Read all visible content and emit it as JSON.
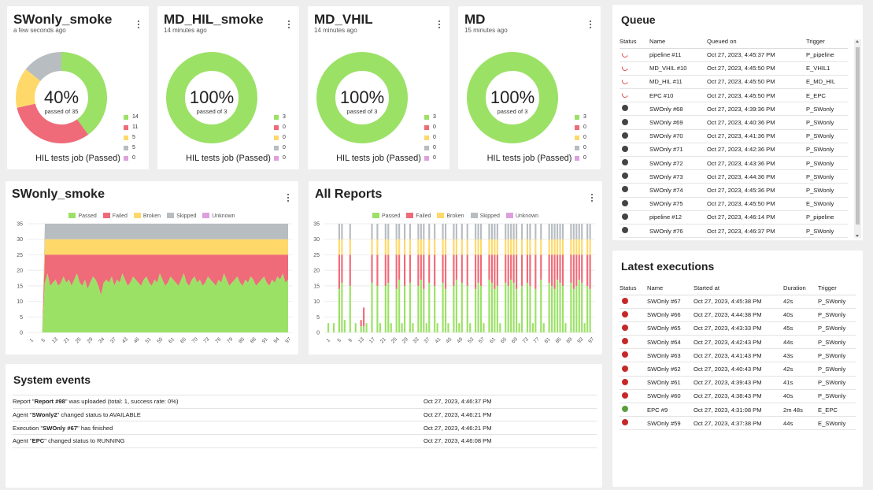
{
  "gauges": [
    {
      "title": "SWonly_smoke",
      "subtitle": "a few seconds ago",
      "percent": "40%",
      "passed_of": "passed of 35",
      "caption": "HIL tests job (Passed)",
      "counts": [
        "14",
        "11",
        "5",
        "5",
        "0"
      ],
      "fractions": [
        0.4,
        0.3143,
        0.1429,
        0.1428,
        0
      ]
    },
    {
      "title": "MD_HIL_smoke",
      "subtitle": "14 minutes ago",
      "percent": "100%",
      "passed_of": "passed of 3",
      "caption": "HIL tests job (Passed)",
      "counts": [
        "3",
        "0",
        "0",
        "0",
        "0"
      ],
      "fractions": [
        1,
        0,
        0,
        0,
        0
      ]
    },
    {
      "title": "MD_VHIL",
      "subtitle": "14 minutes ago",
      "percent": "100%",
      "passed_of": "passed of 3",
      "caption": "HIL tests job (Passed)",
      "counts": [
        "3",
        "0",
        "0",
        "0",
        "0"
      ],
      "fractions": [
        1,
        0,
        0,
        0,
        0
      ]
    },
    {
      "title": "MD",
      "subtitle": "15 minutes ago",
      "percent": "100%",
      "passed_of": "passed of 3",
      "caption": "HIL tests job (Passed)",
      "counts": [
        "3",
        "0",
        "0",
        "0",
        "0"
      ],
      "fractions": [
        1,
        0,
        0,
        0,
        0
      ]
    }
  ],
  "status_colors": {
    "passed": "#9be166",
    "failed": "#ef6b79",
    "broken": "#fed96a",
    "skipped": "#b7bdc1",
    "unknown": "#dda0dd"
  },
  "legend_labels": [
    "Passed",
    "Failed",
    "Broken",
    "Skipped",
    "Unknown"
  ],
  "chart_data": [
    {
      "type": "area",
      "title": "SWonly_smoke",
      "ylim": [
        0,
        35
      ],
      "yticks": [
        "0",
        "5",
        "10",
        "15",
        "20",
        "25",
        "30",
        "35"
      ],
      "xticks": [
        "1",
        "5",
        "13",
        "21",
        "25",
        "29",
        "34",
        "37",
        "43",
        "46",
        "51",
        "55",
        "61",
        "65",
        "70",
        "73",
        "76",
        "79",
        "85",
        "88",
        "91",
        "94",
        "97"
      ],
      "series": [
        {
          "name": "Passed",
          "note": "fluctuates ~14-19 from run 5 onward"
        },
        {
          "name": "Failed",
          "top": 25
        },
        {
          "name": "Broken",
          "top": 30
        },
        {
          "name": "Skipped",
          "top": 35
        }
      ],
      "passed_values": [
        0,
        0,
        0,
        0,
        0,
        16,
        19,
        15,
        16,
        17,
        15,
        16,
        18,
        16,
        17,
        15,
        17,
        19,
        16,
        15,
        17,
        14,
        16,
        18,
        17,
        15,
        12,
        16,
        17,
        16,
        18,
        15,
        17,
        16,
        19,
        17,
        15,
        16,
        18,
        17,
        16,
        15,
        17,
        18,
        16,
        15,
        17,
        16,
        19,
        17,
        15,
        16,
        18,
        17,
        16,
        15,
        17,
        19,
        16,
        15,
        17,
        18,
        16,
        17,
        15,
        16,
        18,
        17,
        16,
        15,
        17,
        16,
        19,
        17,
        15,
        16,
        17,
        18,
        16,
        15,
        17,
        16,
        18,
        17,
        15,
        16,
        17,
        18,
        16,
        15,
        17,
        16,
        18,
        17,
        19,
        16,
        17
      ]
    },
    {
      "type": "bar",
      "title": "All Reports",
      "ylim": [
        0,
        35
      ],
      "yticks": [
        "0",
        "5",
        "10",
        "15",
        "20",
        "25",
        "30",
        "35"
      ],
      "xticks": [
        "1",
        "5",
        "9",
        "13",
        "17",
        "21",
        "25",
        "29",
        "33",
        "37",
        "41",
        "45",
        "49",
        "53",
        "57",
        "61",
        "65",
        "69",
        "73",
        "77",
        "81",
        "85",
        "89",
        "93",
        "97"
      ],
      "stacked_bars": "see bars array",
      "bars": [
        [
          3,
          0,
          0,
          0
        ],
        [
          0,
          0,
          0,
          0
        ],
        [
          3,
          0,
          0,
          0
        ],
        [
          0,
          0,
          0,
          0
        ],
        [
          14,
          11,
          5,
          5
        ],
        [
          16,
          9,
          5,
          5
        ],
        [
          4,
          0,
          0,
          0
        ],
        [
          0,
          0,
          0,
          0
        ],
        [
          15,
          10,
          5,
          5
        ],
        [
          0,
          0,
          0,
          0
        ],
        [
          3,
          0,
          0,
          0
        ],
        [
          0,
          0,
          0,
          0
        ],
        [
          2,
          2,
          0,
          0
        ],
        [
          2,
          6,
          0,
          0
        ],
        [
          3,
          0,
          0,
          0
        ],
        [
          0,
          0,
          0,
          0
        ],
        [
          16,
          9,
          5,
          5
        ],
        [
          0,
          0,
          0,
          0
        ],
        [
          15,
          10,
          5,
          5
        ],
        [
          3,
          0,
          0,
          0
        ],
        [
          0,
          0,
          0,
          0
        ],
        [
          15,
          10,
          5,
          5
        ],
        [
          16,
          9,
          5,
          5
        ],
        [
          3,
          0,
          0,
          0
        ],
        [
          0,
          0,
          0,
          0
        ],
        [
          14,
          11,
          5,
          5
        ],
        [
          17,
          8,
          5,
          5
        ],
        [
          3,
          0,
          0,
          0
        ],
        [
          15,
          10,
          5,
          5
        ],
        [
          0,
          0,
          0,
          0
        ],
        [
          16,
          9,
          5,
          5
        ],
        [
          3,
          0,
          0,
          0
        ],
        [
          0,
          0,
          0,
          0
        ],
        [
          15,
          10,
          5,
          5
        ],
        [
          17,
          8,
          5,
          5
        ],
        [
          14,
          11,
          5,
          5
        ],
        [
          3,
          0,
          0,
          0
        ],
        [
          16,
          9,
          5,
          5
        ],
        [
          0,
          0,
          0,
          0
        ],
        [
          15,
          10,
          5,
          5
        ],
        [
          3,
          0,
          0,
          0
        ],
        [
          0,
          0,
          0,
          0
        ],
        [
          16,
          9,
          5,
          5
        ],
        [
          14,
          11,
          5,
          5
        ],
        [
          3,
          0,
          0,
          0
        ],
        [
          0,
          0,
          0,
          0
        ],
        [
          15,
          10,
          5,
          5
        ],
        [
          17,
          8,
          5,
          5
        ],
        [
          3,
          0,
          0,
          0
        ],
        [
          16,
          9,
          5,
          5
        ],
        [
          0,
          0,
          0,
          0
        ],
        [
          15,
          10,
          5,
          5
        ],
        [
          3,
          0,
          0,
          0
        ],
        [
          0,
          0,
          0,
          0
        ],
        [
          14,
          11,
          5,
          5
        ],
        [
          16,
          9,
          5,
          5
        ],
        [
          15,
          10,
          5,
          5
        ],
        [
          3,
          0,
          0,
          0
        ],
        [
          0,
          0,
          0,
          0
        ],
        [
          17,
          8,
          5,
          5
        ],
        [
          16,
          9,
          5,
          5
        ],
        [
          14,
          11,
          5,
          5
        ],
        [
          15,
          10,
          5,
          5
        ],
        [
          3,
          0,
          0,
          0
        ],
        [
          0,
          0,
          0,
          0
        ],
        [
          16,
          9,
          5,
          5
        ],
        [
          15,
          10,
          5,
          5
        ],
        [
          17,
          8,
          5,
          5
        ],
        [
          16,
          9,
          5,
          5
        ],
        [
          14,
          11,
          5,
          5
        ],
        [
          3,
          0,
          0,
          0
        ],
        [
          15,
          10,
          5,
          5
        ],
        [
          0,
          0,
          0,
          0
        ],
        [
          16,
          9,
          5,
          5
        ],
        [
          15,
          10,
          5,
          5
        ],
        [
          3,
          0,
          0,
          0
        ],
        [
          14,
          11,
          5,
          5
        ],
        [
          0,
          0,
          0,
          0
        ],
        [
          17,
          8,
          5,
          5
        ],
        [
          3,
          0,
          0,
          0
        ],
        [
          0,
          0,
          0,
          0
        ],
        [
          16,
          9,
          5,
          5
        ],
        [
          15,
          10,
          5,
          5
        ],
        [
          14,
          11,
          5,
          5
        ],
        [
          17,
          8,
          5,
          5
        ],
        [
          16,
          9,
          5,
          5
        ],
        [
          15,
          10,
          5,
          5
        ],
        [
          3,
          0,
          0,
          0
        ],
        [
          0,
          0,
          0,
          0
        ],
        [
          16,
          9,
          5,
          5
        ],
        [
          14,
          11,
          5,
          5
        ],
        [
          15,
          10,
          5,
          5
        ],
        [
          17,
          8,
          5,
          5
        ],
        [
          16,
          9,
          5,
          5
        ],
        [
          3,
          0,
          0,
          0
        ],
        [
          15,
          10,
          5,
          5
        ],
        [
          14,
          11,
          5,
          5
        ]
      ]
    }
  ],
  "events": {
    "title": "System events",
    "rows": [
      {
        "pre": "Report \"",
        "bold": "Report #98",
        "post": "\" was uploaded (total: 1, success rate: 0%)",
        "time": "Oct 27, 2023, 4:46:37 PM"
      },
      {
        "pre": "Agent \"",
        "bold": "SWonly2",
        "post": "\" changed status to AVAILABLE",
        "time": "Oct 27, 2023, 4:46:21 PM"
      },
      {
        "pre": "Execution \"",
        "bold": "SWOnly #67",
        "post": "\" has finished",
        "time": "Oct 27, 2023, 4:46:21 PM"
      },
      {
        "pre": "Agent \"",
        "bold": "EPC",
        "post": "\" changed status to RUNNING",
        "time": "Oct 27, 2023, 4:46:08 PM"
      }
    ]
  },
  "queue": {
    "title": "Queue",
    "headers": [
      "Status",
      "Name",
      "Queued on",
      "Trigger"
    ],
    "rows": [
      {
        "status": "running",
        "name": "pipeline #11",
        "queued": "Oct 27, 2023, 4:45:37 PM",
        "trigger": "P_pipeline"
      },
      {
        "status": "running",
        "name": "MD_VHIL #10",
        "queued": "Oct 27, 2023, 4:45:50 PM",
        "trigger": "E_VHIL1"
      },
      {
        "status": "running",
        "name": "MD_HIL #11",
        "queued": "Oct 27, 2023, 4:45:50 PM",
        "trigger": "E_MD_HIL"
      },
      {
        "status": "running",
        "name": "EPC #10",
        "queued": "Oct 27, 2023, 4:45:50 PM",
        "trigger": "E_EPC"
      },
      {
        "status": "queued",
        "name": "SWOnly #68",
        "queued": "Oct 27, 2023, 4:39:36 PM",
        "trigger": "P_SWonly"
      },
      {
        "status": "queued",
        "name": "SWOnly #69",
        "queued": "Oct 27, 2023, 4:40:36 PM",
        "trigger": "P_SWonly"
      },
      {
        "status": "queued",
        "name": "SWOnly #70",
        "queued": "Oct 27, 2023, 4:41:36 PM",
        "trigger": "P_SWonly"
      },
      {
        "status": "queued",
        "name": "SWOnly #71",
        "queued": "Oct 27, 2023, 4:42:36 PM",
        "trigger": "P_SWonly"
      },
      {
        "status": "queued",
        "name": "SWOnly #72",
        "queued": "Oct 27, 2023, 4:43:36 PM",
        "trigger": "P_SWonly"
      },
      {
        "status": "queued",
        "name": "SWOnly #73",
        "queued": "Oct 27, 2023, 4:44:36 PM",
        "trigger": "P_SWonly"
      },
      {
        "status": "queued",
        "name": "SWOnly #74",
        "queued": "Oct 27, 2023, 4:45:36 PM",
        "trigger": "P_SWonly"
      },
      {
        "status": "queued",
        "name": "SWOnly #75",
        "queued": "Oct 27, 2023, 4:45:50 PM",
        "trigger": "E_SWonly"
      },
      {
        "status": "queued",
        "name": "pipeline #12",
        "queued": "Oct 27, 2023, 4:46:14 PM",
        "trigger": "P_pipeline"
      },
      {
        "status": "queued",
        "name": "SWOnly #76",
        "queued": "Oct 27, 2023, 4:46:37 PM",
        "trigger": "P_SWonly"
      }
    ]
  },
  "executions": {
    "title": "Latest executions",
    "headers": [
      "Status",
      "Name",
      "Started at",
      "Duration",
      "Trigger"
    ],
    "rows": [
      {
        "status": "failed",
        "name": "SWOnly #67",
        "started": "Oct 27, 2023, 4:45:38 PM",
        "duration": "42s",
        "trigger": "P_SWonly"
      },
      {
        "status": "failed",
        "name": "SWOnly #66",
        "started": "Oct 27, 2023, 4:44:38 PM",
        "duration": "40s",
        "trigger": "P_SWonly"
      },
      {
        "status": "failed",
        "name": "SWOnly #65",
        "started": "Oct 27, 2023, 4:43:33 PM",
        "duration": "45s",
        "trigger": "P_SWonly"
      },
      {
        "status": "failed",
        "name": "SWOnly #64",
        "started": "Oct 27, 2023, 4:42:43 PM",
        "duration": "44s",
        "trigger": "P_SWonly"
      },
      {
        "status": "failed",
        "name": "SWOnly #63",
        "started": "Oct 27, 2023, 4:41:43 PM",
        "duration": "43s",
        "trigger": "P_SWonly"
      },
      {
        "status": "failed",
        "name": "SWOnly #62",
        "started": "Oct 27, 2023, 4:40:43 PM",
        "duration": "42s",
        "trigger": "P_SWonly"
      },
      {
        "status": "failed",
        "name": "SWOnly #61",
        "started": "Oct 27, 2023, 4:39:43 PM",
        "duration": "41s",
        "trigger": "P_SWonly"
      },
      {
        "status": "failed",
        "name": "SWOnly #60",
        "started": "Oct 27, 2023, 4:38:43 PM",
        "duration": "40s",
        "trigger": "P_SWonly"
      },
      {
        "status": "success",
        "name": "EPC #9",
        "started": "Oct 27, 2023, 4:31:08 PM",
        "duration": "2m 48s",
        "trigger": "E_EPC"
      },
      {
        "status": "failed",
        "name": "SWOnly #59",
        "started": "Oct 27, 2023, 4:37:38 PM",
        "duration": "44s",
        "trigger": "E_SWonly"
      }
    ]
  }
}
